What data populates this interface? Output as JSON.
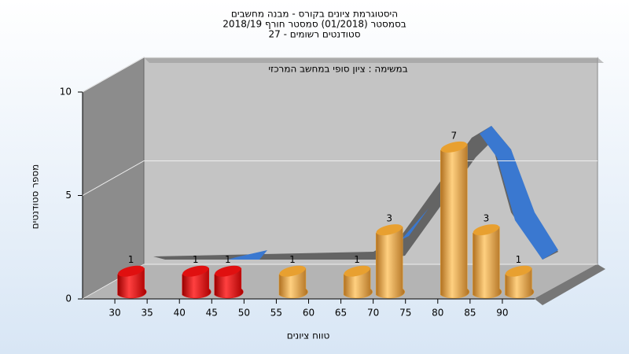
{
  "chart_data": {
    "type": "bar",
    "title": [
      "היסטוגרמת ציונים בקורס - מבנה מחשבים",
      "בסמסטר  (01/2018)  סמסטר חורף 2018/19",
      "סטודנטים רשומים - 27"
    ],
    "annotation": "במשימה : ציון סופי במחשב המרכזי",
    "x_label": "טווח ציונים",
    "y_label": "מספר סטודנטים",
    "x": [
      32.5,
      42.5,
      47.5,
      57.5,
      67.5,
      72.5,
      82.5,
      87.5,
      92.5
    ],
    "values": [
      1,
      1,
      1,
      1,
      1,
      3,
      7,
      3,
      1
    ],
    "colors": [
      "#e01010",
      "#e01010",
      "#e01010",
      "#e8a030",
      "#e8a030",
      "#e8a030",
      "#e8a030",
      "#e8a030",
      "#e8a030"
    ],
    "xlim": [
      25,
      95
    ],
    "xticks": [
      30,
      35,
      40,
      45,
      50,
      55,
      60,
      65,
      70,
      75,
      80,
      85,
      90
    ],
    "ylim": [
      0,
      10
    ],
    "yticks": [
      0,
      5,
      10
    ],
    "grid": true
  }
}
